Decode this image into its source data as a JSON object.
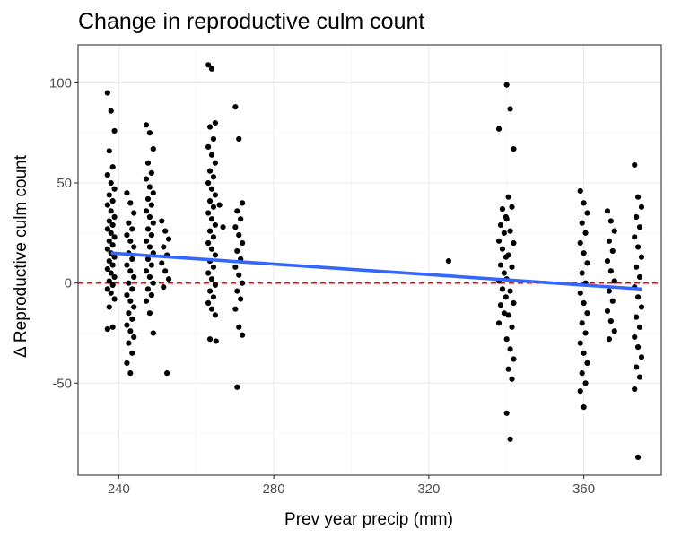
{
  "chart_data": {
    "type": "scatter",
    "title": "Change in reproductive culm count",
    "xlabel": "Prev year precip (mm)",
    "ylabel": "Δ Reproductive culm count",
    "xlim": [
      229.5,
      380
    ],
    "ylim": [
      -96,
      119
    ],
    "x_ticks": [
      240,
      280,
      320,
      360
    ],
    "y_ticks": [
      -50,
      0,
      50,
      100
    ],
    "x_tick_labels": [
      "240",
      "280",
      "320",
      "360"
    ],
    "y_tick_labels": [
      "-50",
      "0",
      "50",
      "100"
    ],
    "grid": true,
    "point_color": "#000000",
    "trend_line_color": "#3366FF",
    "reference_line": {
      "y": 0,
      "color": "#FF0000",
      "style": "dashed"
    },
    "trend_line": {
      "x": [
        238,
        375
      ],
      "y": [
        15,
        -3
      ]
    },
    "groups": [
      {
        "x": 238,
        "values": [
          95,
          86,
          76,
          66,
          58,
          54,
          50,
          47,
          44,
          41,
          39,
          36,
          33,
          31,
          29,
          27,
          25,
          23,
          21,
          19,
          17,
          15,
          13,
          11,
          9,
          7,
          5,
          3,
          1,
          -1,
          -3,
          -5,
          -8,
          -12,
          -22,
          -23
        ]
      },
      {
        "x": 243,
        "values": [
          45,
          40,
          35,
          30,
          27,
          24,
          21,
          18,
          15,
          12,
          9,
          6,
          3,
          0,
          -3,
          -6,
          -9,
          -12,
          -15,
          -18,
          -21,
          -24,
          -27,
          -30,
          -35,
          -40,
          -45
        ]
      },
      {
        "x": 248,
        "values": [
          79,
          75,
          67,
          60,
          55,
          52,
          48,
          45,
          42,
          39,
          36,
          33,
          30,
          27,
          24,
          21,
          18,
          15,
          12,
          9,
          6,
          3,
          0,
          -3,
          -6,
          -9,
          -15,
          -25
        ]
      },
      {
        "x": 252,
        "values": [
          31,
          26,
          22,
          18,
          14,
          10,
          6,
          2,
          -2,
          -45
        ]
      },
      {
        "x": 264,
        "values": [
          109,
          107,
          80,
          78,
          72,
          68,
          64,
          60,
          56,
          53,
          50,
          47,
          44,
          41,
          38,
          35,
          32,
          29,
          26,
          23,
          20,
          17,
          14,
          11,
          8,
          5,
          2,
          -1,
          -4,
          -7,
          -10,
          -13,
          -16,
          -28
        ]
      },
      {
        "x": 266,
        "values": [
          -29,
          39,
          28
        ]
      },
      {
        "x": 271,
        "values": [
          88,
          72,
          40,
          36,
          32,
          28,
          24,
          20,
          16,
          12,
          8,
          4,
          0,
          -4,
          -8,
          -13,
          -22,
          -26,
          -52
        ]
      },
      {
        "x": 326,
        "values": [
          11
        ]
      },
      {
        "x": 339,
        "values": [
          77,
          37,
          33,
          29,
          25,
          21,
          17,
          13,
          9,
          5,
          1,
          -3,
          -7,
          -11,
          -15,
          -20
        ]
      },
      {
        "x": 341,
        "values": [
          99,
          87,
          67,
          43,
          38,
          32,
          26,
          20,
          14,
          8,
          2,
          -4,
          -10,
          -16,
          -22,
          -28,
          -33,
          -38,
          -43,
          -48,
          -65,
          -78
        ]
      },
      {
        "x": 360,
        "values": [
          46,
          40,
          35,
          30,
          25,
          20,
          15,
          10,
          5,
          0,
          -5,
          -10,
          -15,
          -20,
          -25,
          -30,
          -35,
          -40,
          -45,
          -50,
          -54,
          -62
        ]
      },
      {
        "x": 367,
        "values": [
          36,
          31,
          26,
          21,
          16,
          11,
          6,
          1,
          -4,
          -9,
          -14,
          -19,
          -24,
          -28
        ]
      },
      {
        "x": 374,
        "values": [
          59,
          43,
          38,
          33,
          28,
          23,
          18,
          13,
          8,
          3,
          -2,
          -7,
          -12,
          -17,
          -22,
          -27,
          -32,
          -37,
          -42,
          -47,
          -53,
          -87
        ]
      }
    ]
  }
}
